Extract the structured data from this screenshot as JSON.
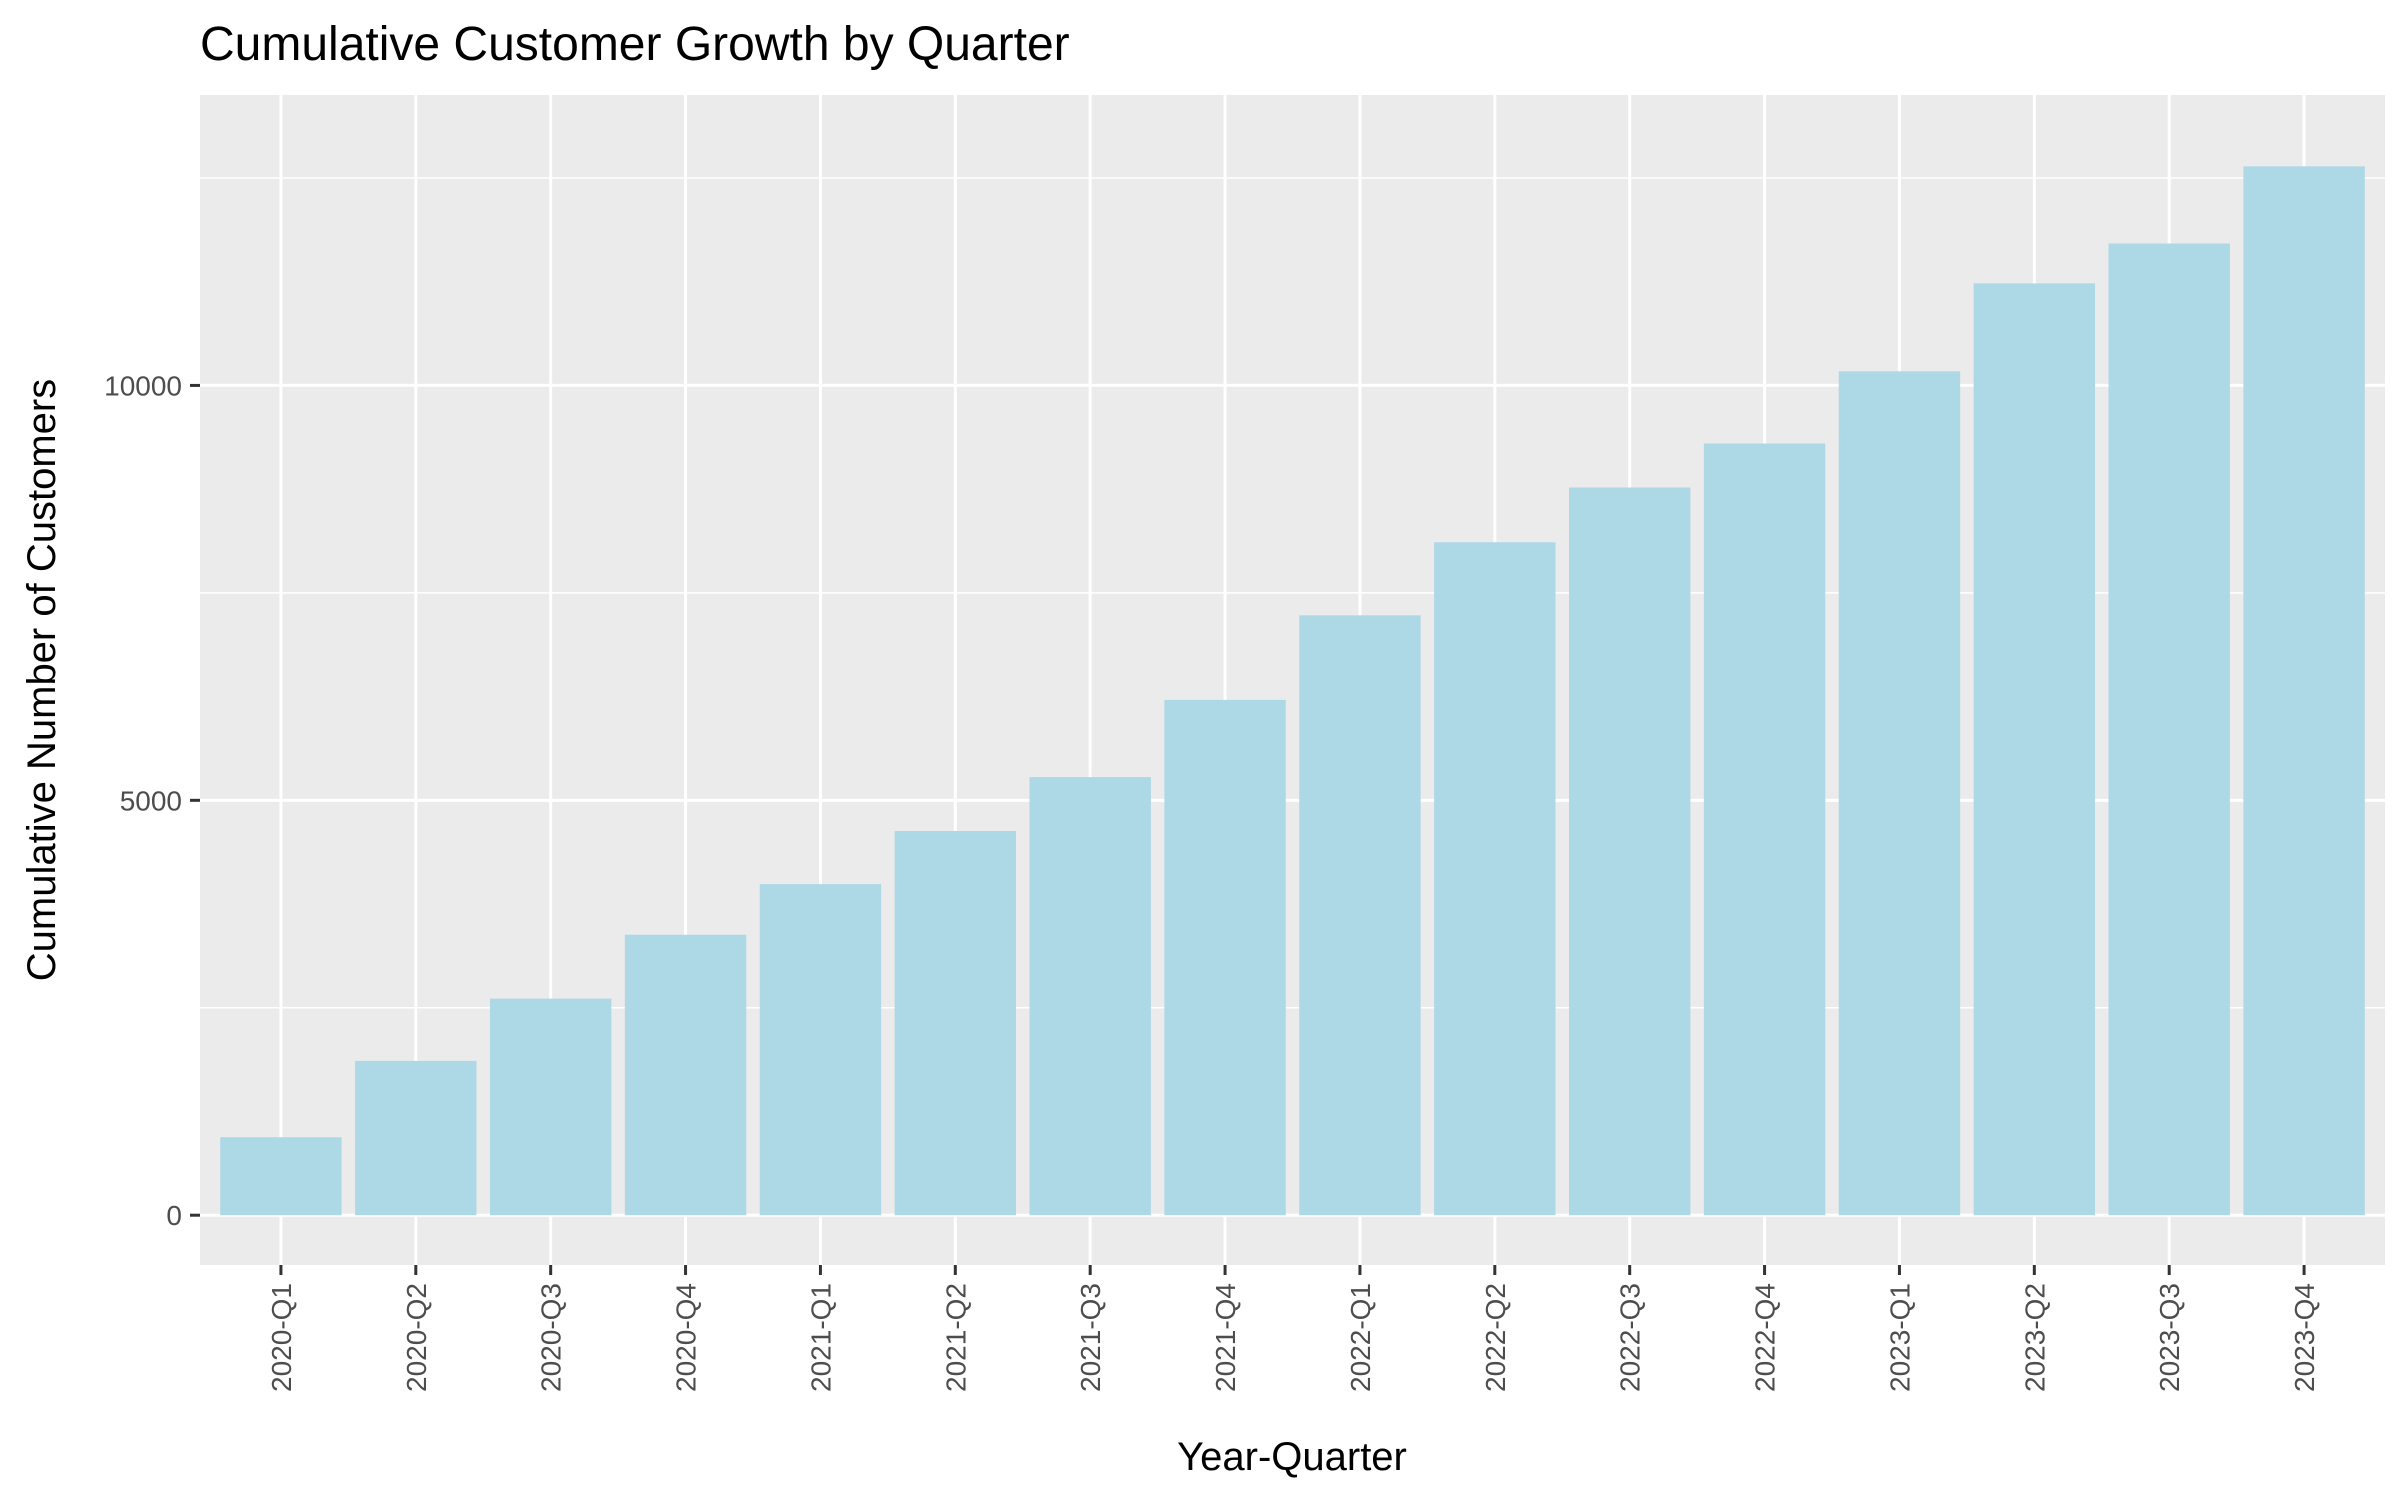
{
  "chart_data": {
    "type": "bar",
    "title": "Cumulative Customer Growth by Quarter",
    "xlabel": "Year-Quarter",
    "ylabel": "Cumulative Number of Customers",
    "categories": [
      "2020-Q1",
      "2020-Q2",
      "2020-Q3",
      "2020-Q4",
      "2021-Q1",
      "2021-Q2",
      "2021-Q3",
      "2021-Q4",
      "2022-Q1",
      "2022-Q2",
      "2022-Q3",
      "2022-Q4",
      "2023-Q1",
      "2023-Q2",
      "2023-Q3",
      "2023-Q4"
    ],
    "values": [
      940,
      1860,
      2610,
      3380,
      3990,
      4630,
      5280,
      6210,
      7230,
      8110,
      8770,
      9300,
      10170,
      11230,
      11710,
      12640
    ],
    "ylim": [
      -600,
      13500
    ],
    "yticks": [
      0,
      5000,
      10000
    ],
    "ytick_labels": [
      "0",
      "5000",
      "10000"
    ],
    "grid": true,
    "legend": "none",
    "colors": {
      "bar": "#add8e6",
      "panel": "#ebebeb",
      "grid": "#ffffff"
    }
  }
}
